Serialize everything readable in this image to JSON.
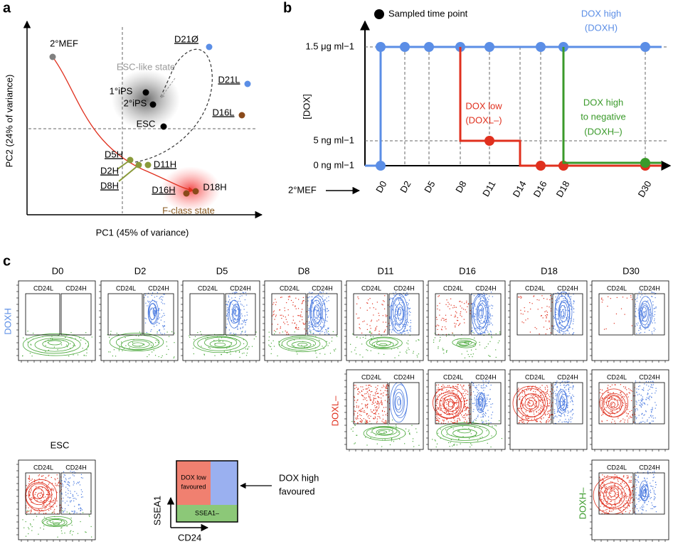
{
  "panels": {
    "a": {
      "label": "a",
      "x_axis": "PC1 (45% of variance)",
      "y_axis": "PC2 (24% of variance)",
      "points": [
        "2°MEF",
        "D21Ø",
        "1°iPS",
        "2°iPS",
        "ESC",
        "D21L",
        "D16L",
        "D5H",
        "D11H",
        "D2H",
        "D8H",
        "D16H",
        "D18H"
      ],
      "states": [
        "ESC-like state",
        "F-class state"
      ]
    },
    "b": {
      "label": "b",
      "legend": "Sampled time point",
      "y_axis": "[DOX]",
      "levels": [
        "1.5 μg ml−1",
        "5 ng ml−1",
        "0 ng ml−1"
      ],
      "start": "2°MEF",
      "timepoints": [
        "D0",
        "D2",
        "D5",
        "D8",
        "D11",
        "D14",
        "D16",
        "D18",
        "D30"
      ],
      "series": [
        {
          "lines": [
            "DOX high",
            "(DOXH)"
          ],
          "color": "#5b8ee6"
        },
        {
          "lines": [
            "DOX low",
            "(DOXL–)"
          ],
          "color": "#e0301e"
        },
        {
          "lines": [
            "DOX high",
            "to negative",
            "(DOXH–)"
          ],
          "color": "#3a9a2a"
        }
      ]
    },
    "c": {
      "label": "c",
      "columns": [
        "D0",
        "D2",
        "D5",
        "D8",
        "D11",
        "D16",
        "D18",
        "D30"
      ],
      "rows": [
        "DOXH",
        "DOXL–",
        "DOXH–"
      ],
      "gates": [
        "CD24L",
        "CD24H"
      ],
      "esc": "ESC",
      "schematic": {
        "red": [
          "DOX low",
          "favoured"
        ],
        "blue": [
          "DOX high",
          "favoured"
        ],
        "green": "SSEA1–",
        "y_axis": "SSEA1",
        "x_axis": "CD24"
      }
    }
  }
}
